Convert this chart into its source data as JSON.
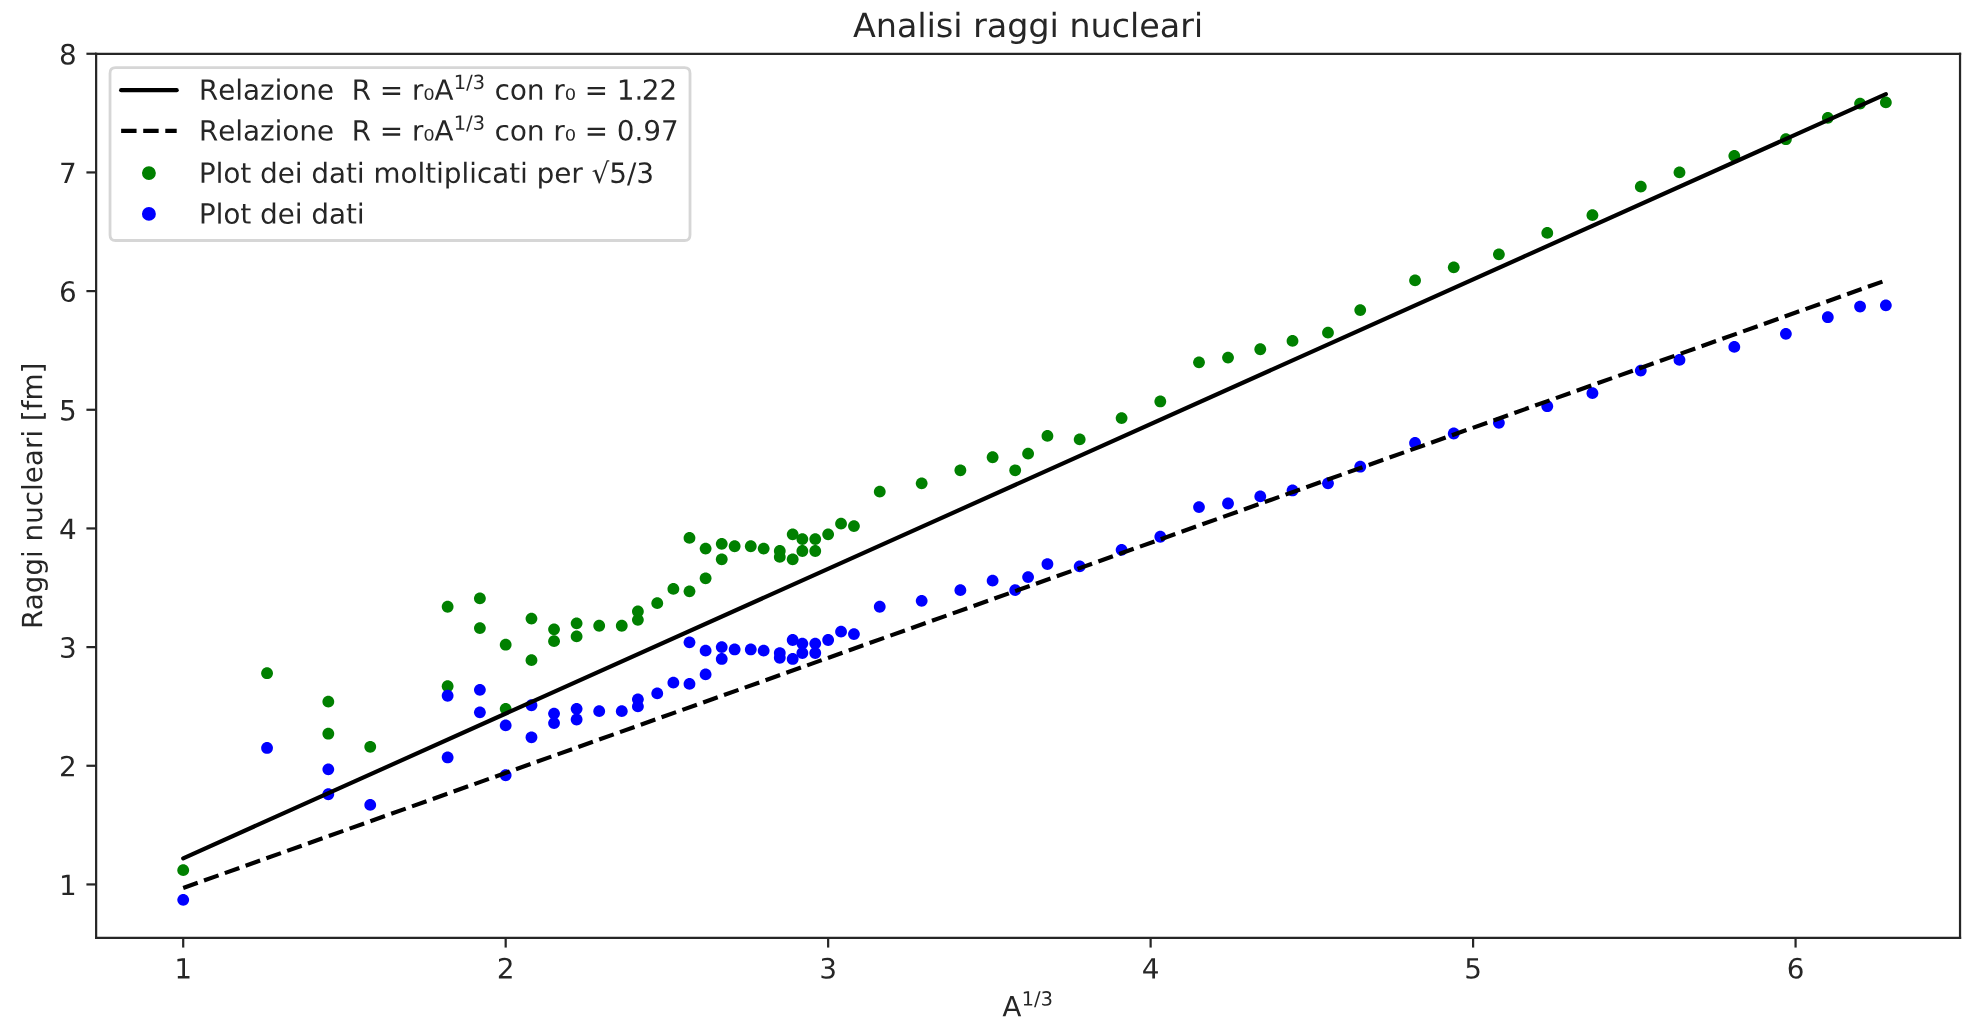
{
  "chart_data": {
    "type": "scatter",
    "title": "Analisi raggi nucleari",
    "xlabel": "A$^{1/3}$",
    "ylabel": "Raggi nucleari [fm]",
    "xlim": [
      0.73,
      6.51
    ],
    "ylim": [
      0.55,
      8.0
    ],
    "xticks": [
      1,
      2,
      3,
      4,
      5,
      6
    ],
    "yticks": [
      1,
      2,
      3,
      4,
      5,
      6,
      7,
      8
    ],
    "grid": false,
    "legend": "top left",
    "marker": "circle",
    "series": [
      {
        "name": "Relazione  R = r₀A$^{1/3}$ con r₀ = 1.22",
        "type": "line",
        "line_style": "solid",
        "marker": "none",
        "color": "#000000",
        "x": [
          1.0,
          6.28
        ],
        "values": [
          1.22,
          7.66
        ]
      },
      {
        "name": "Relazione  R = r₀A$^{1/3}$ con r₀ = 0.97",
        "type": "line",
        "line_style": "dashed",
        "marker": "none",
        "color": "#000000",
        "x": [
          1.0,
          6.28
        ],
        "values": [
          0.97,
          6.09
        ]
      },
      {
        "name": "Plot dei dati moltiplicati per √5/3",
        "color": "#008000",
        "x": [
          1.0,
          1.26,
          1.45,
          1.45,
          1.58,
          1.82,
          1.82,
          1.92,
          1.92,
          2.0,
          2.0,
          2.08,
          2.08,
          2.15,
          2.15,
          2.22,
          2.22,
          2.29,
          2.36,
          2.41,
          2.41,
          2.47,
          2.52,
          2.57,
          2.57,
          2.62,
          2.62,
          2.67,
          2.67,
          2.71,
          2.76,
          2.8,
          2.85,
          2.85,
          2.89,
          2.89,
          2.92,
          2.92,
          2.96,
          2.96,
          3.0,
          3.04,
          3.08,
          3.16,
          3.29,
          3.41,
          3.51,
          3.58,
          3.62,
          3.68,
          3.78,
          3.91,
          4.03,
          4.15,
          4.24,
          4.34,
          4.44,
          4.55,
          4.65,
          4.82,
          4.94,
          5.08,
          5.23,
          5.37,
          5.52,
          5.64,
          5.81,
          5.97,
          6.1,
          6.2,
          6.28
        ],
        "values": [
          1.12,
          2.78,
          2.54,
          2.27,
          2.16,
          3.34,
          2.67,
          3.41,
          3.16,
          3.02,
          2.48,
          3.24,
          2.89,
          3.15,
          3.05,
          3.2,
          3.09,
          3.18,
          3.18,
          3.3,
          3.23,
          3.37,
          3.49,
          3.92,
          3.47,
          3.58,
          3.83,
          3.87,
          3.74,
          3.85,
          3.85,
          3.83,
          3.81,
          3.76,
          3.95,
          3.74,
          3.91,
          3.81,
          3.91,
          3.81,
          3.95,
          4.04,
          4.02,
          4.31,
          4.38,
          4.49,
          4.6,
          4.49,
          4.63,
          4.78,
          4.75,
          4.93,
          5.07,
          5.4,
          5.44,
          5.51,
          5.58,
          5.65,
          5.84,
          6.09,
          6.2,
          6.31,
          6.49,
          6.64,
          6.88,
          7.0,
          7.14,
          7.28,
          7.46,
          7.58,
          7.59
        ]
      },
      {
        "name": "Plot dei dati",
        "color": "#0000ff",
        "x": [
          1.0,
          1.26,
          1.45,
          1.45,
          1.58,
          1.82,
          1.82,
          1.92,
          1.92,
          2.0,
          2.0,
          2.08,
          2.08,
          2.15,
          2.15,
          2.22,
          2.22,
          2.29,
          2.36,
          2.41,
          2.41,
          2.47,
          2.52,
          2.57,
          2.57,
          2.62,
          2.62,
          2.67,
          2.67,
          2.71,
          2.76,
          2.8,
          2.85,
          2.85,
          2.89,
          2.89,
          2.92,
          2.92,
          2.96,
          2.96,
          3.0,
          3.04,
          3.08,
          3.16,
          3.29,
          3.41,
          3.51,
          3.58,
          3.62,
          3.68,
          3.78,
          3.91,
          4.03,
          4.15,
          4.24,
          4.34,
          4.44,
          4.55,
          4.65,
          4.82,
          4.94,
          5.08,
          5.23,
          5.37,
          5.52,
          5.64,
          5.81,
          5.97,
          6.1,
          6.2,
          6.28
        ],
        "values": [
          0.87,
          2.15,
          1.97,
          1.76,
          1.67,
          2.59,
          2.07,
          2.64,
          2.45,
          2.34,
          1.92,
          2.51,
          2.24,
          2.44,
          2.36,
          2.48,
          2.39,
          2.46,
          2.46,
          2.56,
          2.5,
          2.61,
          2.7,
          3.04,
          2.69,
          2.77,
          2.97,
          3.0,
          2.9,
          2.98,
          2.98,
          2.97,
          2.95,
          2.91,
          3.06,
          2.9,
          3.03,
          2.95,
          3.03,
          2.95,
          3.06,
          3.13,
          3.11,
          3.34,
          3.39,
          3.48,
          3.56,
          3.48,
          3.59,
          3.7,
          3.68,
          3.82,
          3.93,
          4.18,
          4.21,
          4.27,
          4.32,
          4.38,
          4.52,
          4.72,
          4.8,
          4.89,
          5.03,
          5.14,
          5.33,
          5.42,
          5.53,
          5.64,
          5.78,
          5.87,
          5.88
        ]
      }
    ]
  }
}
